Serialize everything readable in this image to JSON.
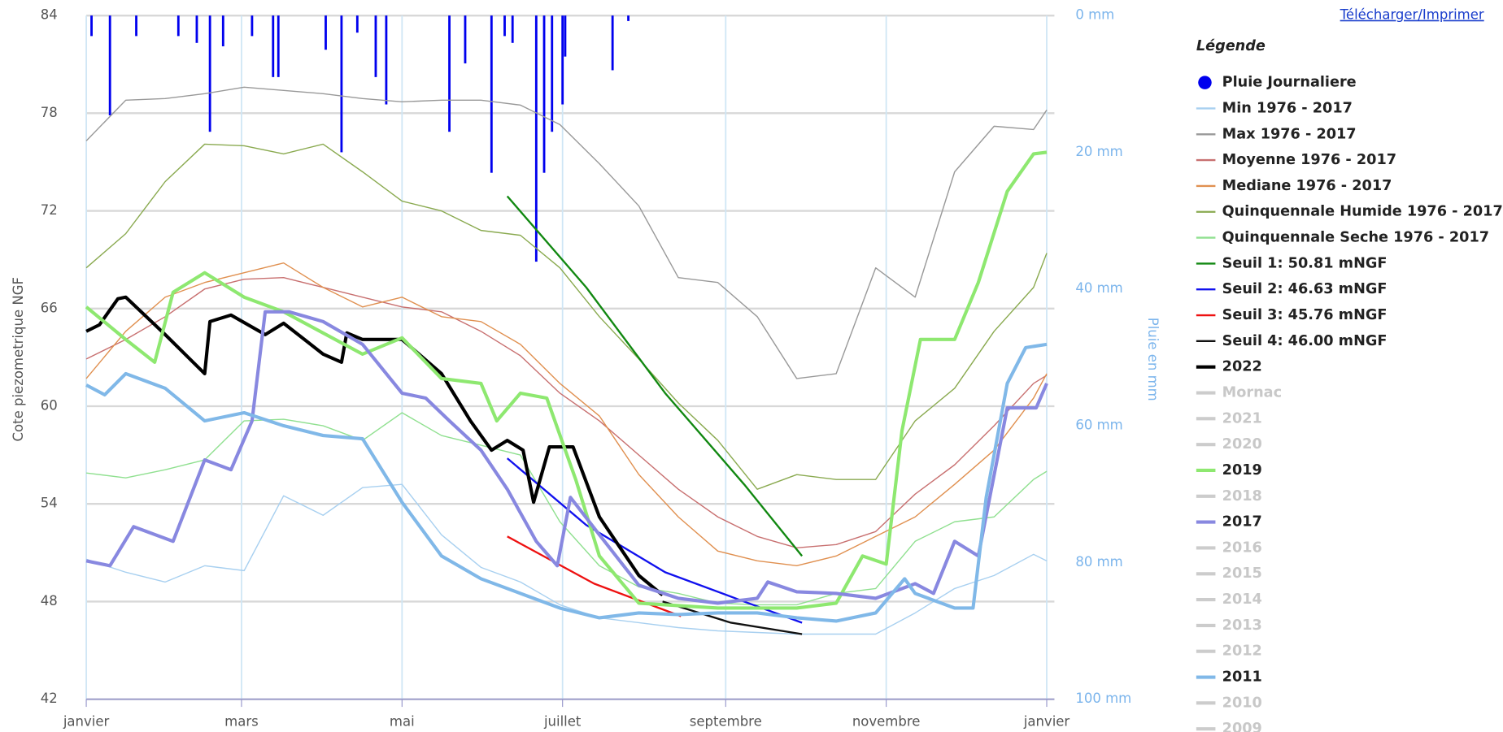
{
  "link": "Télécharger/Imprimer",
  "chart_data": {
    "type": "line",
    "ylabel": "Cote piezometrique NGF",
    "y2label": "Pluie en mm",
    "legend_title": "Légende",
    "xlim": [
      0,
      365
    ],
    "xticks": [
      {
        "value": 0,
        "label": "janvier"
      },
      {
        "value": 59,
        "label": "mars"
      },
      {
        "value": 120,
        "label": "mai"
      },
      {
        "value": 181,
        "label": "juillet"
      },
      {
        "value": 243,
        "label": "septembre"
      },
      {
        "value": 304,
        "label": "novembre"
      },
      {
        "value": 365,
        "label": "janvier"
      }
    ],
    "ylim": [
      42,
      84
    ],
    "yticks": [
      42,
      48,
      54,
      60,
      66,
      72,
      78,
      84
    ],
    "y2lim": [
      0,
      100
    ],
    "y2ticks": [
      {
        "value": 0,
        "label": "0 mm"
      },
      {
        "value": 20,
        "label": "20 mm"
      },
      {
        "value": 40,
        "label": "40 mm"
      },
      {
        "value": 60,
        "label": "60 mm"
      },
      {
        "value": 80,
        "label": "80 mm"
      },
      {
        "value": 100,
        "label": "100 mm"
      }
    ],
    "grid": true,
    "series": [
      {
        "name": "Pluie Journaliere",
        "type": "bar",
        "axis": "y2",
        "color": "#0000ee",
        "x": [
          2,
          9,
          19,
          35,
          42,
          47,
          52,
          63,
          71,
          73,
          91,
          97,
          103,
          110,
          114,
          138,
          144,
          154,
          159,
          162,
          171,
          174,
          177,
          181,
          182,
          200,
          206
        ],
        "values": [
          3,
          14.6,
          3,
          3,
          4,
          17,
          4.5,
          3,
          9,
          9,
          5,
          20,
          2.5,
          9,
          13,
          17,
          7,
          23,
          3,
          4,
          36,
          23,
          17,
          13,
          6,
          8,
          0.8
        ]
      },
      {
        "name": "Min 1976 - 2017",
        "color": "#a8d0f0",
        "width": 1.2,
        "x": [
          0,
          15,
          30,
          45,
          60,
          75,
          90,
          105,
          120,
          135,
          150,
          165,
          180,
          195,
          210,
          225,
          240,
          255,
          270,
          285,
          300,
          315,
          330,
          345,
          360,
          365
        ],
        "values": [
          50.6,
          49.8,
          49.2,
          50.2,
          49.9,
          54.5,
          53.3,
          55,
          55.2,
          52.1,
          50.1,
          49.2,
          47.8,
          47,
          46.7,
          46.4,
          46.2,
          46.1,
          46,
          46,
          46,
          47.3,
          48.8,
          49.6,
          50.9,
          50.5
        ]
      },
      {
        "name": "Max 1976 - 2017",
        "color": "#999999",
        "width": 1.2,
        "x": [
          0,
          15,
          30,
          45,
          60,
          75,
          90,
          105,
          120,
          135,
          150,
          165,
          180,
          195,
          210,
          225,
          240,
          255,
          270,
          285,
          300,
          315,
          330,
          345,
          360,
          365
        ],
        "values": [
          76.3,
          78.8,
          78.9,
          79.2,
          79.6,
          79.4,
          79.2,
          78.9,
          78.7,
          78.8,
          78.8,
          78.5,
          77.3,
          74.9,
          72.3,
          67.9,
          67.6,
          65.5,
          61.7,
          62,
          68.5,
          66.7,
          74.4,
          77.2,
          77,
          78.2
        ]
      },
      {
        "name": "Moyenne 1976 - 2017",
        "color": "#c87070",
        "width": 1.2,
        "x": [
          0,
          15,
          30,
          45,
          60,
          75,
          90,
          105,
          120,
          135,
          150,
          165,
          180,
          195,
          210,
          225,
          240,
          255,
          270,
          285,
          300,
          315,
          330,
          345,
          360,
          365
        ],
        "values": [
          62.9,
          64.1,
          65.5,
          67.2,
          67.8,
          67.9,
          67.3,
          66.7,
          66.1,
          65.8,
          64.6,
          63.1,
          60.8,
          59.1,
          57,
          54.9,
          53.2,
          52,
          51.3,
          51.5,
          52.3,
          54.6,
          56.4,
          58.8,
          61.4,
          61.9
        ]
      },
      {
        "name": "Mediane 1976 - 2017",
        "color": "#e09050",
        "width": 1.2,
        "x": [
          0,
          15,
          30,
          45,
          60,
          75,
          90,
          105,
          120,
          135,
          150,
          165,
          180,
          195,
          210,
          225,
          240,
          255,
          270,
          285,
          300,
          315,
          330,
          345,
          360,
          365
        ],
        "values": [
          61.7,
          64.6,
          66.7,
          67.6,
          68.2,
          68.8,
          67.3,
          66.1,
          66.7,
          65.5,
          65.2,
          63.8,
          61.4,
          59.4,
          55.8,
          53.2,
          51.1,
          50.5,
          50.2,
          50.8,
          52,
          53.2,
          55.2,
          57.3,
          60.5,
          62
        ]
      },
      {
        "name": "Quinquennale Humide 1976 - 2017",
        "color": "#8aaa50",
        "width": 1.2,
        "x": [
          0,
          15,
          30,
          45,
          60,
          75,
          90,
          105,
          120,
          135,
          150,
          165,
          180,
          195,
          210,
          225,
          240,
          255,
          270,
          285,
          300,
          315,
          330,
          345,
          360,
          365
        ],
        "values": [
          68.5,
          70.6,
          73.8,
          76.1,
          76,
          75.5,
          76.1,
          74.4,
          72.6,
          72,
          70.8,
          70.5,
          68.5,
          65.5,
          62.9,
          60.2,
          57.9,
          54.9,
          55.8,
          55.5,
          55.5,
          59.1,
          61.1,
          64.6,
          67.3,
          69.4
        ]
      },
      {
        "name": "Quinquennale Seche 1976 - 2017",
        "color": "#90e090",
        "width": 1.2,
        "x": [
          0,
          15,
          30,
          45,
          60,
          75,
          90,
          105,
          120,
          135,
          150,
          165,
          180,
          195,
          210,
          225,
          240,
          255,
          270,
          285,
          300,
          315,
          330,
          345,
          360,
          365
        ],
        "values": [
          55.9,
          55.6,
          56.1,
          56.7,
          59.1,
          59.2,
          58.8,
          57.9,
          59.6,
          58.2,
          57.6,
          57,
          52.9,
          50.2,
          48.9,
          48.5,
          47.9,
          47.8,
          47.8,
          48.5,
          48.8,
          51.7,
          52.9,
          53.2,
          55.5,
          56
        ]
      },
      {
        "name": "Seuil 1: 50.81 mNGF",
        "color": "#118811",
        "width": 2,
        "x": [
          160,
          190,
          220,
          250,
          272
        ],
        "values": [
          72.9,
          67.3,
          60.8,
          55.2,
          50.8
        ]
      },
      {
        "name": "Seuil 2: 46.63 mNGF",
        "color": "#1111ee",
        "width": 2,
        "x": [
          160,
          190,
          220,
          250,
          272
        ],
        "values": [
          56.8,
          52.7,
          49.8,
          48,
          46.7
        ]
      },
      {
        "name": "Seuil 3: 45.76 mNGF",
        "color": "#ee1111",
        "width": 2,
        "x": [
          160,
          193,
          226
        ],
        "values": [
          52,
          49.1,
          47.1
        ]
      },
      {
        "name": "Seuil 4: 46.00 mNGF",
        "color": "#111111",
        "width": 2,
        "x": [
          219,
          245,
          272
        ],
        "values": [
          48,
          46.7,
          46
        ]
      },
      {
        "name": "2022",
        "color": "#000000",
        "width": 3.5,
        "x": [
          0,
          5,
          12,
          15,
          30,
          45,
          47,
          55,
          68,
          75,
          90,
          97,
          99,
          105,
          120,
          135,
          146,
          154,
          160,
          166,
          170,
          176,
          185,
          195,
          210,
          219
        ],
        "values": [
          64.6,
          65,
          66.6,
          66.7,
          64.4,
          62,
          65.2,
          65.6,
          64.4,
          65.1,
          63.2,
          62.7,
          64.5,
          64.1,
          64.1,
          62,
          59.1,
          57.3,
          57.9,
          57.3,
          54.1,
          57.5,
          57.5,
          53.2,
          49.6,
          48.4
        ]
      },
      {
        "name": "Mornac",
        "visible": false
      },
      {
        "name": "2021",
        "visible": false
      },
      {
        "name": "2020",
        "visible": false
      },
      {
        "name": "2019",
        "color": "#8ee870",
        "width": 3.5,
        "x": [
          0,
          15,
          26,
          33,
          45,
          60,
          75,
          105,
          120,
          135,
          150,
          156,
          165,
          175,
          186,
          195,
          210,
          240,
          270,
          285,
          295,
          304,
          310,
          317,
          330,
          339,
          350,
          360,
          365
        ],
        "values": [
          66.1,
          64.1,
          62.7,
          67,
          68.2,
          66.7,
          65.8,
          63.2,
          64.2,
          61.7,
          61.4,
          59.1,
          60.8,
          60.5,
          55.5,
          50.8,
          47.9,
          47.6,
          47.6,
          47.9,
          50.8,
          50.3,
          58.5,
          64.1,
          64.1,
          67.6,
          73.2,
          75.5,
          75.6
        ]
      },
      {
        "name": "2018",
        "visible": false
      },
      {
        "name": "2017",
        "color": "#8888e0",
        "width": 3.5,
        "x": [
          0,
          9,
          18,
          33,
          45,
          55,
          63,
          68,
          77,
          90,
          105,
          120,
          129,
          138,
          150,
          160,
          171,
          179,
          184,
          195,
          210,
          225,
          240,
          255,
          259,
          270,
          285,
          300,
          315,
          322,
          330,
          339,
          350,
          361,
          365
        ],
        "values": [
          50.5,
          50.2,
          52.6,
          51.7,
          56.7,
          56.1,
          59.1,
          65.8,
          65.8,
          65.2,
          63.8,
          60.8,
          60.5,
          59.1,
          57.3,
          54.9,
          51.7,
          50.2,
          54.4,
          52.1,
          49,
          48.2,
          47.9,
          48.2,
          49.2,
          48.6,
          48.5,
          48.2,
          49.1,
          48.5,
          51.7,
          50.8,
          59.9,
          59.9,
          61.4
        ]
      },
      {
        "name": "2016",
        "visible": false
      },
      {
        "name": "2015",
        "visible": false
      },
      {
        "name": "2014",
        "visible": false
      },
      {
        "name": "2013",
        "visible": false
      },
      {
        "name": "2012",
        "visible": false
      },
      {
        "name": "2011",
        "color": "#80b8e8",
        "width": 3.5,
        "x": [
          0,
          7,
          15,
          30,
          45,
          60,
          75,
          90,
          105,
          120,
          135,
          150,
          165,
          180,
          195,
          210,
          225,
          240,
          255,
          270,
          285,
          300,
          311,
          315,
          330,
          337,
          342,
          350,
          357,
          365
        ],
        "values": [
          61.3,
          60.7,
          62,
          61.1,
          59.1,
          59.6,
          58.8,
          58.2,
          58,
          54.1,
          50.8,
          49.4,
          48.5,
          47.6,
          47,
          47.3,
          47.2,
          47.3,
          47.3,
          47,
          46.8,
          47.3,
          49.4,
          48.5,
          47.6,
          47.6,
          54.4,
          61.4,
          63.6,
          63.8
        ]
      },
      {
        "name": "2010",
        "visible": false
      },
      {
        "name": "2009",
        "visible": false
      }
    ]
  }
}
